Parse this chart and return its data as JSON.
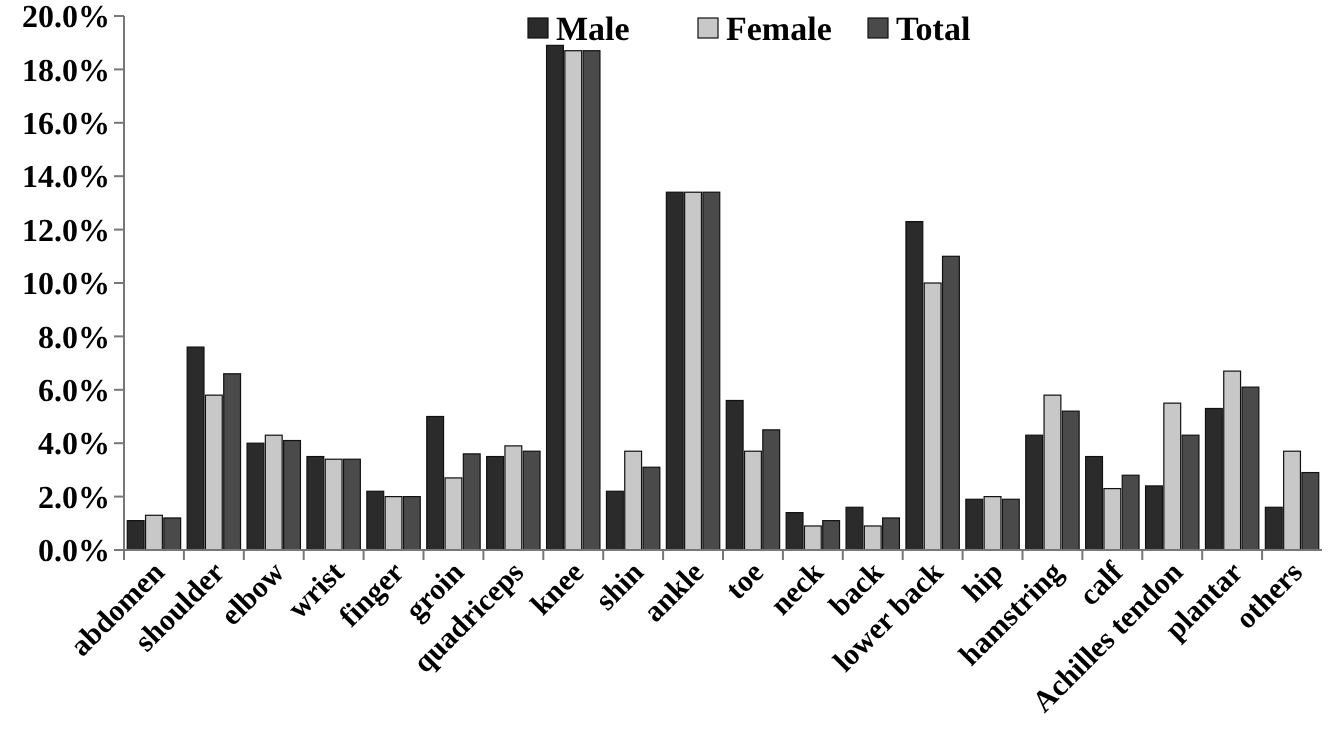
{
  "chart_data": {
    "type": "bar",
    "categories": [
      "abdomen",
      "shoulder",
      "elbow",
      "wrist",
      "finger",
      "groin",
      "quadriceps",
      "knee",
      "shin",
      "ankle",
      "toe",
      "neck",
      "back",
      "lower back",
      "hip",
      "hamstring",
      "calf",
      "Achilles tendon",
      "plantar",
      "others"
    ],
    "series": [
      {
        "name": "Male",
        "color": "#2b2b2b",
        "values": [
          1.1,
          7.6,
          4.0,
          3.5,
          2.2,
          5.0,
          3.5,
          18.9,
          2.2,
          13.4,
          5.6,
          1.4,
          1.6,
          12.3,
          1.9,
          4.3,
          3.5,
          2.4,
          5.3,
          1.6
        ]
      },
      {
        "name": "Female",
        "color": "#c8c8c8",
        "values": [
          1.3,
          5.8,
          4.3,
          3.4,
          2.0,
          2.7,
          3.9,
          18.7,
          3.7,
          13.4,
          3.7,
          0.9,
          0.9,
          10.0,
          2.0,
          5.8,
          2.3,
          5.5,
          6.7,
          3.7
        ]
      },
      {
        "name": "Total",
        "color": "#4a4a4a",
        "values": [
          1.2,
          6.6,
          4.1,
          3.4,
          2.0,
          3.6,
          3.7,
          18.7,
          3.1,
          13.4,
          4.5,
          1.1,
          1.2,
          11.0,
          1.9,
          5.2,
          2.8,
          4.3,
          6.1,
          2.9
        ]
      }
    ],
    "ylim": [
      0,
      20
    ],
    "yticks": [
      {
        "value": 0,
        "label": "0.0%"
      },
      {
        "value": 2,
        "label": "2.0%"
      },
      {
        "value": 4,
        "label": "4.0%"
      },
      {
        "value": 6,
        "label": "6.0%"
      },
      {
        "value": 8,
        "label": "8.0%"
      },
      {
        "value": 10,
        "label": "10.0%"
      },
      {
        "value": 12,
        "label": "12.0%"
      },
      {
        "value": 14,
        "label": "14.0%"
      },
      {
        "value": 16,
        "label": "16.0%"
      },
      {
        "value": 18,
        "label": "18.0%"
      },
      {
        "value": 20,
        "label": "20.0%"
      }
    ],
    "legend": "top",
    "grid": false
  }
}
